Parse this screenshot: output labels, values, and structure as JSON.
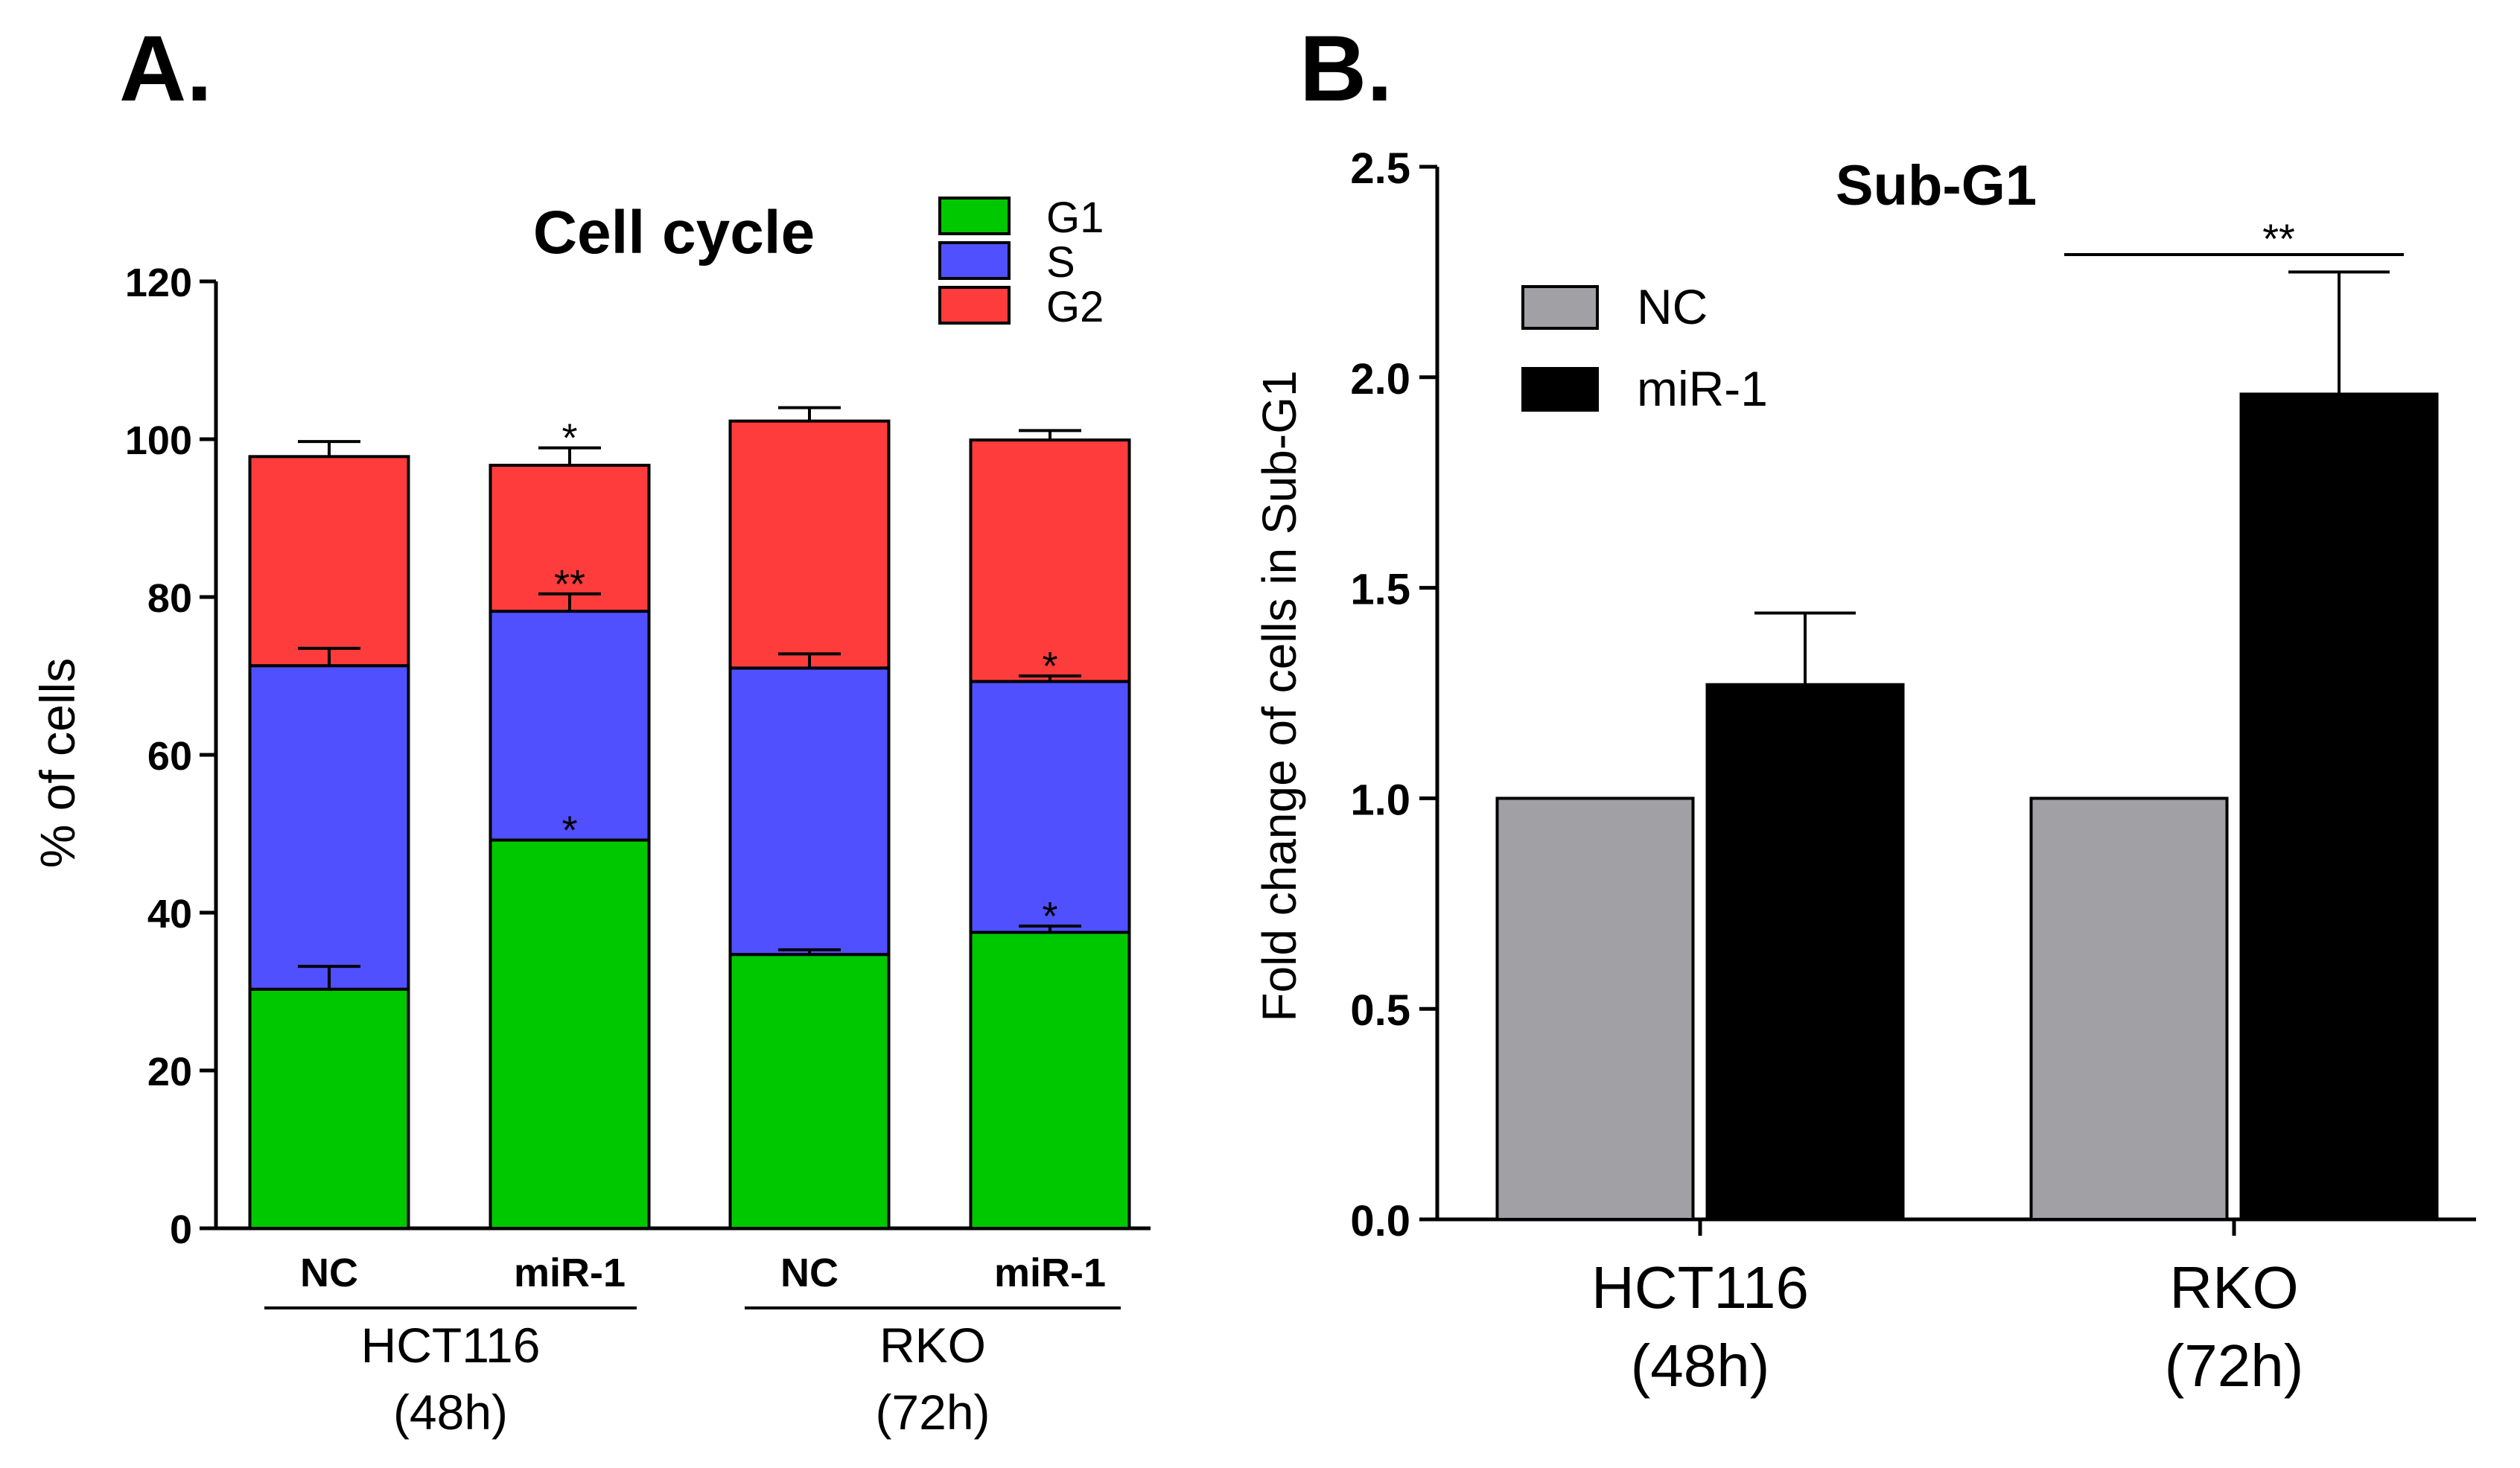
{
  "panels": {
    "a": {
      "label": "A."
    },
    "b": {
      "label": "B."
    }
  },
  "chart_data": [
    {
      "id": "A",
      "type": "bar",
      "stacked": true,
      "title": "Cell cycle",
      "ylabel": "% of cells",
      "xlabel": "",
      "ylim": [
        0,
        120
      ],
      "yticks": [
        0,
        20,
        40,
        60,
        80,
        100,
        120
      ],
      "categories": [
        "NC",
        "miR-1",
        "NC",
        "miR-1"
      ],
      "groups": [
        {
          "line1": "HCT116",
          "line2": "(48h)"
        },
        {
          "line1": "RKO",
          "line2": "(72h)"
        }
      ],
      "legend_position": "top-right",
      "colors": {
        "G1": "#00c800",
        "S": "#5050ff",
        "G2": "#ff3c3c"
      },
      "series": [
        {
          "name": "G1",
          "values": [
            30.3,
            49.2,
            34.7,
            37.5
          ],
          "err": [
            2.9,
            0,
            0.6,
            0.8
          ],
          "sig": [
            "",
            "*",
            "",
            "*"
          ]
        },
        {
          "name": "S",
          "values": [
            41.0,
            29.0,
            36.3,
            31.8
          ],
          "err": [
            2.2,
            2.2,
            1.8,
            0.7
          ],
          "sig": [
            "",
            "**",
            "",
            "*"
          ]
        },
        {
          "name": "G2",
          "values": [
            26.5,
            18.5,
            31.3,
            30.6
          ],
          "err": [
            1.9,
            2.2,
            1.7,
            1.2
          ],
          "sig": [
            "",
            "*",
            "",
            ""
          ]
        }
      ]
    },
    {
      "id": "B",
      "type": "bar",
      "title": "Sub-G1",
      "ylabel": "Fold change of cells in Sub-G1",
      "xlabel": "",
      "ylim": [
        0,
        2.5
      ],
      "yticks": [
        "0.0",
        "0.5",
        "1.0",
        "1.5",
        "2.0",
        "2.5"
      ],
      "categories": [
        {
          "line1": "HCT116",
          "line2": "(48h)"
        },
        {
          "line1": "RKO",
          "line2": "(72h)"
        }
      ],
      "legend_position": "top-left",
      "colors": {
        "NC": "#a0a0a5",
        "miR-1": "#000000"
      },
      "series": [
        {
          "name": "NC",
          "values": [
            1.0,
            1.0
          ],
          "err": [
            0,
            0
          ]
        },
        {
          "name": "miR-1",
          "values": [
            1.27,
            1.96
          ],
          "err": [
            0.17,
            0.29
          ]
        }
      ],
      "significance": [
        {
          "group": 1,
          "label": "**"
        }
      ]
    }
  ]
}
